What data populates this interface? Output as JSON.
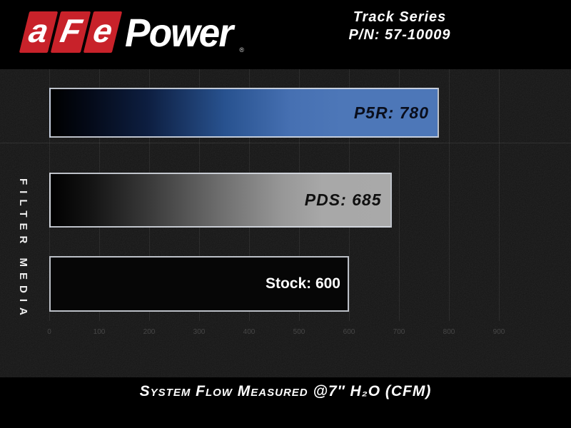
{
  "header": {
    "logo": {
      "red_letters": [
        "a",
        "F",
        "e"
      ],
      "white_text": "Power",
      "registered_mark": "®"
    },
    "series_title": "Track Series",
    "part_number": "P/N: 57-10009"
  },
  "colors": {
    "logo_red": "#c8222a",
    "p5r_blue": "#4d77b8",
    "pds_gray": "#a9a9a9",
    "stock_black": "#060606",
    "background": "#000000",
    "chart_background": "#151515"
  },
  "chart_data": {
    "type": "bar",
    "orientation": "horizontal",
    "title": "Track Series P/N: 57-10009",
    "categories": [
      "P5R",
      "PDS",
      "Stock"
    ],
    "values": [
      780,
      685,
      600
    ],
    "bar_labels": [
      "P5R: 780",
      "PDS: 685",
      "Stock: 600"
    ],
    "bar_colors": [
      "#4d77b8",
      "#a9a9a9",
      "#060606"
    ],
    "xlabel": "System Flow Measured @7″ H₂O (CFM)",
    "ylabel": "FILTER MEDIA",
    "xlim": [
      0,
      950
    ],
    "x_ticks": [
      0,
      100,
      200,
      300,
      400,
      500,
      600,
      700,
      800,
      900
    ],
    "grid": "vertical"
  }
}
